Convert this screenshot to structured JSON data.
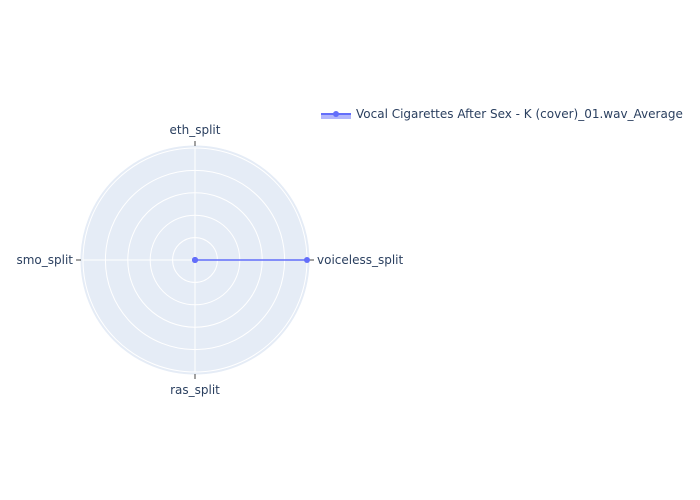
{
  "chart_data": {
    "type": "radar",
    "axes": [
      "voiceless_split",
      "eth_split",
      "smo_split",
      "ras_split"
    ],
    "radial_range": [
      0,
      1
    ],
    "grid": true,
    "legend_position": "top-right",
    "series": [
      {
        "name": "Vocal Cigarettes After Sex - K (cover)_01.wav_Average",
        "values": [
          1,
          0,
          0,
          0
        ],
        "color": "#636efa",
        "fill": "toself"
      }
    ],
    "colors": {
      "polar_bg": "#e5ecf6",
      "grid": "#ffffff",
      "text": "#2a3f5f",
      "tick": "#444444"
    }
  }
}
